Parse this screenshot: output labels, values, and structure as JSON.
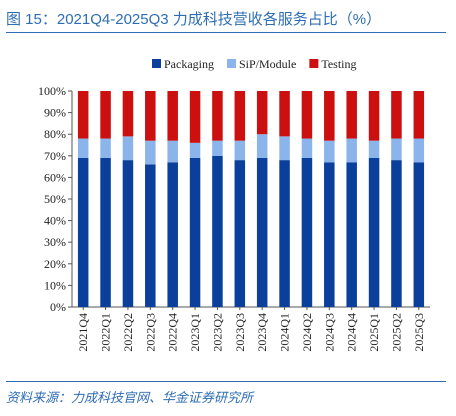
{
  "figure": {
    "title": "图 15：2021Q4-2025Q3 力成科技营收各服务占比（%）",
    "source": "资料来源：力成科技官网、华金证券研究所"
  },
  "colors": {
    "packaging": "#0b3f9c",
    "sip_module": "#8ab4ea",
    "testing": "#cc1010",
    "accent": "#2e6db4"
  },
  "chart_data": {
    "type": "bar",
    "stacked": true,
    "categories": [
      "2021Q4",
      "2022Q1",
      "2022Q2",
      "2022Q3",
      "2022Q4",
      "2023Q1",
      "2023Q2",
      "2023Q3",
      "2023Q4",
      "2024Q1",
      "2024Q2",
      "2024Q3",
      "2024Q4",
      "2025Q1",
      "2025Q2",
      "2025Q3"
    ],
    "series": [
      {
        "name": "Packaging",
        "values": [
          69,
          69,
          68,
          66,
          67,
          69,
          70,
          68,
          69,
          68,
          69,
          67,
          67,
          69,
          68,
          67
        ]
      },
      {
        "name": "SiP/Module",
        "values": [
          9,
          9,
          11,
          11,
          10,
          7,
          7,
          9,
          11,
          11,
          9,
          10,
          11,
          8,
          10,
          11
        ]
      },
      {
        "name": "Testing",
        "values": [
          22,
          22,
          21,
          23,
          23,
          24,
          23,
          23,
          20,
          21,
          22,
          23,
          22,
          23,
          22,
          22
        ]
      }
    ],
    "y_tick_labels": [
      "0%",
      "10%",
      "20%",
      "30%",
      "40%",
      "50%",
      "60%",
      "70%",
      "80%",
      "90%",
      "100%"
    ],
    "ylim": [
      0,
      100
    ],
    "grid": false,
    "legend_position": "top-center"
  }
}
